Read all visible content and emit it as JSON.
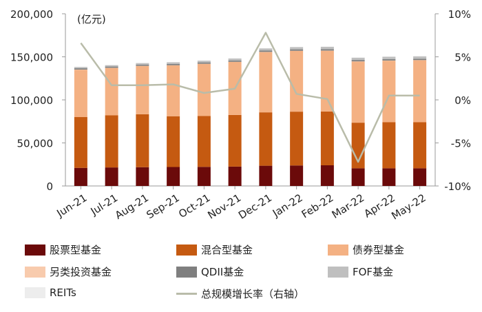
{
  "chart_data": {
    "type": "bar",
    "stacked": true,
    "unit_label": "(亿元)",
    "categories": [
      "Jun-21",
      "Jul-21",
      "Aug-21",
      "Sep-21",
      "Oct-21",
      "Nov-21",
      "Dec-21",
      "Jan-22",
      "Feb-22",
      "Mar-22",
      "Apr-22",
      "May-22"
    ],
    "y_left": {
      "min": 0,
      "max": 200000,
      "ticks": [
        "0",
        "50,000",
        "100,000",
        "150,000",
        "200,000"
      ]
    },
    "y_right": {
      "min": -10,
      "max": 10,
      "ticks": [
        "-10%",
        "-5%",
        "0%",
        "5%",
        "10%"
      ]
    },
    "series": [
      {
        "name": "股票型基金",
        "color": "#6b0a0a",
        "values": [
          21000,
          21500,
          21800,
          22000,
          22200,
          22500,
          23500,
          23800,
          24000,
          20500,
          20500,
          20500
        ]
      },
      {
        "name": "混合型基金",
        "color": "#c55a11",
        "values": [
          59000,
          60500,
          61500,
          59000,
          59000,
          60000,
          62000,
          62500,
          62500,
          53000,
          53500,
          53500
        ]
      },
      {
        "name": "债券型基金",
        "color": "#f4b183",
        "values": [
          55000,
          55000,
          56000,
          59000,
          60500,
          61500,
          70000,
          70500,
          70500,
          71000,
          71500,
          72000
        ]
      },
      {
        "name": "另类投资基金",
        "color": "#f8cbad",
        "values": [
          200,
          200,
          200,
          200,
          200,
          200,
          200,
          200,
          200,
          200,
          200,
          200
        ]
      },
      {
        "name": "QDII基金",
        "color": "#7f7f7f",
        "values": [
          1500,
          1500,
          1500,
          1600,
          1600,
          1600,
          1700,
          1700,
          1700,
          1600,
          1600,
          1600
        ]
      },
      {
        "name": "FOF基金",
        "color": "#bfbfbf",
        "values": [
          1500,
          1600,
          1700,
          1800,
          2000,
          2200,
          2400,
          2600,
          2700,
          2700,
          2800,
          2800
        ]
      },
      {
        "name": "REITs",
        "color": "#ededed",
        "values": [
          300,
          300,
          300,
          300,
          300,
          300,
          300,
          300,
          300,
          300,
          300,
          300
        ]
      }
    ],
    "line": {
      "name": "总规模增长率（右轴）",
      "color": "#b9bca9",
      "values": [
        6.6,
        1.7,
        1.7,
        1.8,
        0.8,
        1.3,
        7.8,
        0.7,
        0.1,
        -7.2,
        0.5,
        0.5
      ]
    },
    "legend_position": "bottom",
    "grid": false
  }
}
